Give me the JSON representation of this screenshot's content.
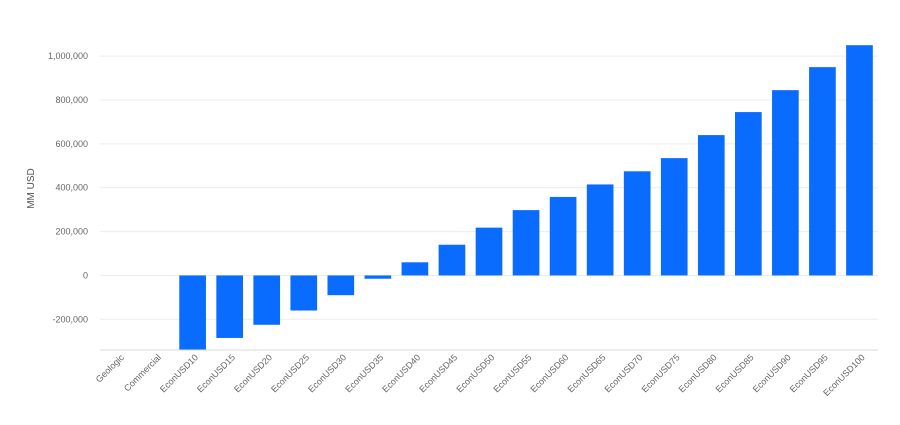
{
  "chart_data": {
    "type": "bar",
    "title": "",
    "xlabel": "",
    "ylabel": "MM USD",
    "categories": [
      "Geologic",
      "Commercial",
      "EconUSD10",
      "EconUSD15",
      "EconUSD20",
      "EconUSD25",
      "EconUSD30",
      "EconUSD35",
      "EconUSD40",
      "EconUSD45",
      "EconUSD50",
      "EconUSD55",
      "EconUSD60",
      "EconUSD65",
      "EconUSD70",
      "EconUSD75",
      "EconUSD80",
      "EconUSD85",
      "EconUSD90",
      "EconUSD95",
      "EconUSD100"
    ],
    "values": [
      null,
      null,
      -340000,
      -285000,
      -225000,
      -160000,
      -90000,
      -15000,
      60000,
      140000,
      218000,
      298000,
      358000,
      415000,
      475000,
      535000,
      640000,
      745000,
      845000,
      950000,
      1050000
    ],
    "ylim": [
      -340000,
      1060000
    ],
    "yticks": [
      -200000,
      0,
      200000,
      400000,
      600000,
      800000,
      1000000
    ],
    "ytick_labels": [
      "-200,000",
      "0",
      "200,000",
      "400,000",
      "600,000",
      "800,000",
      "1,000,000"
    ],
    "bar_color": "#0A6CFF",
    "grid": true,
    "legend": "none"
  }
}
